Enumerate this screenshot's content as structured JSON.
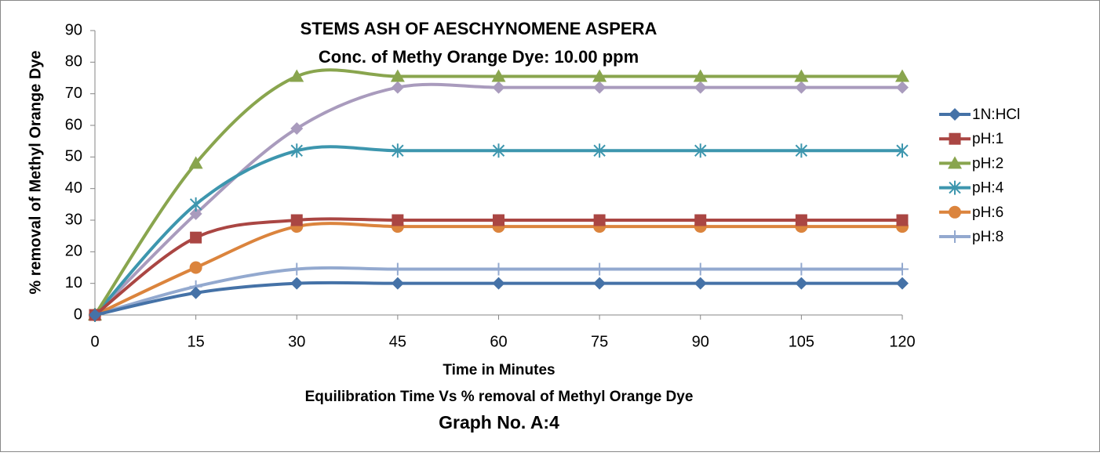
{
  "chart_data": {
    "type": "line",
    "title": "STEMS ASH OF AESCHYNOMENE ASPERA",
    "subtitle": "Conc. of Methy Orange Dye: 10.00 ppm",
    "x_label": "Time in Minutes",
    "caption": "Equilibration Time Vs % removal of Methyl Orange Dye",
    "graph_label": "Graph No. A:4",
    "y_label": "% removal of Methyl Orange Dye",
    "x": [
      0,
      15,
      30,
      45,
      60,
      75,
      90,
      105,
      120
    ],
    "xlim": [
      0,
      120
    ],
    "xticks": [
      0,
      15,
      30,
      45,
      60,
      75,
      90,
      105,
      120
    ],
    "ylim": [
      0,
      90
    ],
    "yticks": [
      0,
      10,
      20,
      30,
      40,
      50,
      60,
      70,
      80,
      90
    ],
    "grid": false,
    "smooth": true,
    "legend": "right",
    "series": [
      {
        "name": "1N:HCl",
        "color": "#4572a7",
        "marker": "diamond",
        "values": [
          0,
          7,
          10,
          10,
          10,
          10,
          10,
          10,
          10
        ]
      },
      {
        "name": "pH:1",
        "color": "#aa4643",
        "marker": "square",
        "values": [
          0,
          24.5,
          30,
          30,
          30,
          30,
          30,
          30,
          30
        ]
      },
      {
        "name": "pH:2",
        "color": "#89a54e",
        "marker": "triangle",
        "values": [
          0,
          48,
          75.5,
          75.5,
          75.5,
          75.5,
          75.5,
          75.5,
          75.5
        ]
      },
      {
        "name": "pH:4",
        "color": "#3d96ae",
        "marker": "star",
        "values": [
          0,
          35,
          52,
          52,
          52,
          52,
          52,
          52,
          52
        ]
      },
      {
        "name": "pH:6",
        "color": "#db843d",
        "marker": "circle",
        "values": [
          0,
          15,
          28,
          28,
          28,
          28,
          28,
          28,
          28
        ]
      },
      {
        "name": "pH:8",
        "color": "#93a9cf",
        "marker": "plus",
        "values": [
          0,
          9,
          14.5,
          14.5,
          14.5,
          14.5,
          14.5,
          14.5,
          14.5
        ]
      },
      {
        "color": "#a99bbd",
        "marker": "diamond",
        "values": [
          0,
          32,
          59,
          72,
          72,
          72,
          72,
          72,
          72
        ]
      }
    ]
  }
}
